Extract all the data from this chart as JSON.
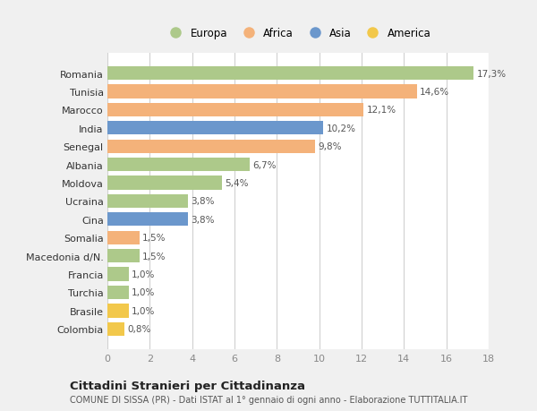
{
  "countries": [
    "Romania",
    "Tunisia",
    "Marocco",
    "India",
    "Senegal",
    "Albania",
    "Moldova",
    "Ucraina",
    "Cina",
    "Somalia",
    "Macedonia d/N.",
    "Francia",
    "Turchia",
    "Brasile",
    "Colombia"
  ],
  "values": [
    17.3,
    14.6,
    12.1,
    10.2,
    9.8,
    6.7,
    5.4,
    3.8,
    3.8,
    1.5,
    1.5,
    1.0,
    1.0,
    1.0,
    0.8
  ],
  "labels": [
    "17,3%",
    "14,6%",
    "12,1%",
    "10,2%",
    "9,8%",
    "6,7%",
    "5,4%",
    "3,8%",
    "3,8%",
    "1,5%",
    "1,5%",
    "1,0%",
    "1,0%",
    "1,0%",
    "0,8%"
  ],
  "continents": [
    "Europa",
    "Africa",
    "Africa",
    "Asia",
    "Africa",
    "Europa",
    "Europa",
    "Europa",
    "Asia",
    "Africa",
    "Europa",
    "Europa",
    "Europa",
    "America",
    "America"
  ],
  "colors": {
    "Europa": "#adc98a",
    "Africa": "#f4b27a",
    "Asia": "#6b97cc",
    "America": "#f2c84b"
  },
  "title": "Cittadini Stranieri per Cittadinanza",
  "subtitle": "COMUNE DI SISSA (PR) - Dati ISTAT al 1° gennaio di ogni anno - Elaborazione TUTTITALIA.IT",
  "xlim": [
    0,
    18
  ],
  "xticks": [
    0,
    2,
    4,
    6,
    8,
    10,
    12,
    14,
    16,
    18
  ],
  "background_color": "#f0f0f0",
  "plot_bg_color": "#ffffff",
  "grid_color": "#d0d0d0",
  "label_color": "#555555",
  "tick_color": "#888888"
}
